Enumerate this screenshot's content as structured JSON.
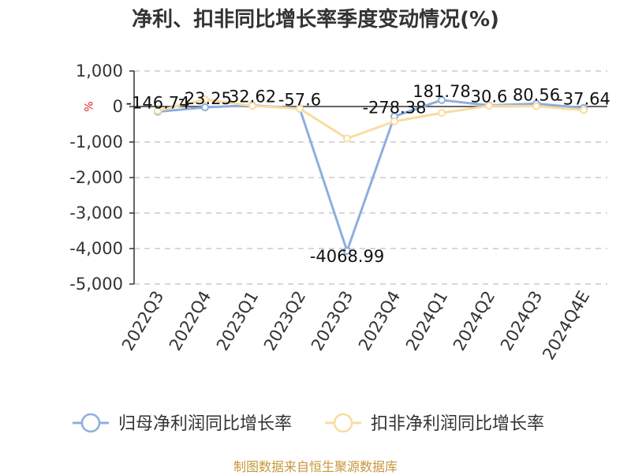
{
  "title": "净利、扣非同比增长率季度变动情况(%)",
  "source_note": "制图数据来自恒生聚源数据库",
  "colors": {
    "series_net": "#8eaede",
    "series_nonrecurring": "#f9dca0",
    "grid": "#cccccc",
    "axis": "#333333",
    "unit": "#e02020"
  },
  "chart_data": {
    "type": "line",
    "ylabel": "%",
    "ylim": [
      -5000,
      1000
    ],
    "yticks": [
      1000,
      0,
      -1000,
      -2000,
      -3000,
      -4000,
      -5000
    ],
    "ytick_labels": [
      "1,000",
      "0",
      "-1,000",
      "-2,000",
      "-3,000",
      "-4,000",
      "-5,000"
    ],
    "categories": [
      "2022Q3",
      "2022Q4",
      "2023Q1",
      "2023Q2",
      "2023Q3",
      "2023Q4",
      "2024Q1",
      "2024Q2",
      "2024Q3",
      "2024Q4E"
    ],
    "grid": "horizontal dashed",
    "legend_position": "bottom",
    "series": [
      {
        "name": "归母净利润同比增长率",
        "values": [
          -146.74,
          -23.25,
          32.62,
          -57.6,
          -4068.99,
          -278.38,
          181.78,
          30.6,
          80.56,
          -37.64
        ],
        "labels": [
          "-146.74",
          "-23.25",
          "32.62",
          "-57.6",
          "-4068.99",
          "-278.38",
          "181.78",
          "30.6",
          "80.56",
          "-37.64"
        ]
      },
      {
        "name": "扣非净利润同比增长率",
        "values": [
          -120,
          200,
          20,
          -60,
          -900,
          -420,
          -180,
          20,
          10,
          -100
        ]
      }
    ]
  }
}
